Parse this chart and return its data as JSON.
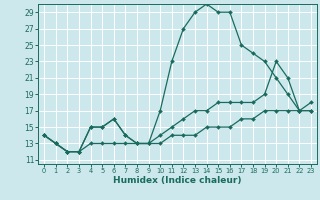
{
  "xlabel": "Humidex (Indice chaleur)",
  "bg_color": "#cce8ec",
  "grid_color": "#ffffff",
  "line_color": "#1a6b5e",
  "xlim": [
    -0.5,
    23.5
  ],
  "ylim": [
    10.5,
    30.0
  ],
  "xticks": [
    0,
    1,
    2,
    3,
    4,
    5,
    6,
    7,
    8,
    9,
    10,
    11,
    12,
    13,
    14,
    15,
    16,
    17,
    18,
    19,
    20,
    21,
    22,
    23
  ],
  "yticks": [
    11,
    13,
    15,
    17,
    19,
    21,
    23,
    25,
    27,
    29
  ],
  "line1_x": [
    0,
    1,
    2,
    3,
    4,
    5,
    6,
    7,
    8,
    9,
    10,
    11,
    12,
    13,
    14,
    15,
    16,
    17,
    18,
    19,
    20,
    21,
    22,
    23
  ],
  "line1_y": [
    14,
    13,
    12,
    12,
    15,
    15,
    16,
    14,
    13,
    13,
    17,
    23,
    27,
    29,
    30,
    29,
    29,
    25,
    24,
    23,
    21,
    19,
    17,
    17
  ],
  "line2_x": [
    0,
    1,
    2,
    3,
    4,
    5,
    6,
    7,
    8,
    9,
    10,
    11,
    12,
    13,
    14,
    15,
    16,
    17,
    18,
    19,
    20,
    21,
    22,
    23
  ],
  "line2_y": [
    14,
    13,
    12,
    12,
    15,
    15,
    16,
    14,
    13,
    13,
    14,
    15,
    16,
    17,
    17,
    18,
    18,
    18,
    18,
    19,
    23,
    21,
    17,
    17
  ],
  "line3_x": [
    0,
    1,
    2,
    3,
    4,
    5,
    6,
    7,
    8,
    9,
    10,
    11,
    12,
    13,
    14,
    15,
    16,
    17,
    18,
    19,
    20,
    21,
    22,
    23
  ],
  "line3_y": [
    14,
    13,
    12,
    12,
    13,
    13,
    13,
    13,
    13,
    13,
    13,
    14,
    14,
    14,
    15,
    15,
    15,
    16,
    16,
    17,
    17,
    17,
    17,
    18
  ]
}
